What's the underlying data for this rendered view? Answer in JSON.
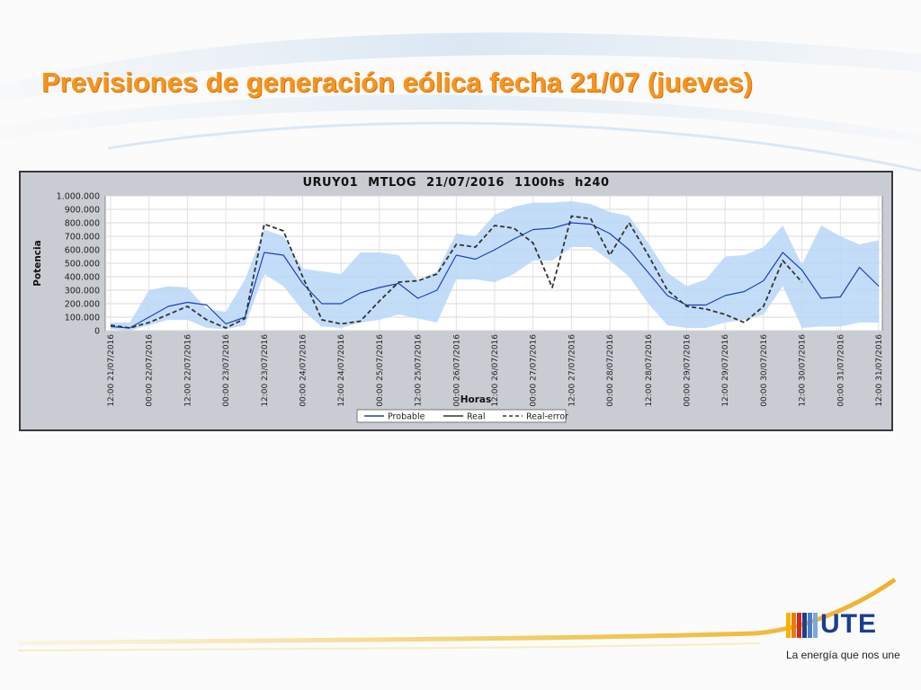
{
  "slide": {
    "title": "Previsiones de generación eólica fecha 21/07 (jueves)"
  },
  "brand": {
    "logo_text": "UTE",
    "tagline": "La energía que nos une"
  },
  "colors": {
    "title": "#f7941d",
    "band": "#b9d7f7",
    "probable": "#1f3fbf",
    "real": "#333333",
    "brand_blue": "#1b3f8f"
  },
  "chart_data": {
    "type": "line",
    "title": "URUY01  MTLOG  21/07/2016  1100hs   h240",
    "xlabel": "Horas",
    "ylabel": "Potencia",
    "ylim": [
      0,
      1000000
    ],
    "grid": true,
    "legend_position": "bottom",
    "yticks": [
      "0",
      "100.000",
      "200.000",
      "300.000",
      "400.000",
      "500.000",
      "600.000",
      "700.000",
      "800.000",
      "900.000",
      "1.000.000"
    ],
    "xticks": [
      "12:00 21/07/2016",
      "00:00 22/07/2016",
      "12:00 22/07/2016",
      "00:00 23/07/2016",
      "12:00 23/07/2016",
      "00:00 24/07/2016",
      "12:00 24/07/2016",
      "00:00 25/07/2016",
      "12:00 25/07/2016",
      "00:00 26/07/2016",
      "12:00 26/07/2016",
      "00:00 27/07/2016",
      "12:00 27/07/2016",
      "00:00 28/07/2016",
      "12:00 28/07/2016",
      "00:00 29/07/2016",
      "12:00 29/07/2016",
      "00:00 30/07/2016",
      "12:00 30/07/2016",
      "00:00 31/07/2016",
      "12:00 31/07/2016"
    ],
    "x_hours": [
      0,
      6,
      12,
      18,
      24,
      30,
      36,
      42,
      48,
      54,
      60,
      66,
      72,
      78,
      84,
      90,
      96,
      102,
      108,
      114,
      120,
      126,
      132,
      138,
      144,
      150,
      156,
      162,
      168,
      174,
      180,
      186,
      192,
      198,
      204,
      210,
      216,
      222,
      228,
      234,
      240
    ],
    "series": [
      {
        "name": "Probable",
        "style": "solid",
        "values": [
          30000,
          20000,
          100000,
          180000,
          210000,
          190000,
          50000,
          100000,
          580000,
          560000,
          350000,
          200000,
          200000,
          280000,
          320000,
          350000,
          240000,
          300000,
          560000,
          530000,
          600000,
          680000,
          750000,
          760000,
          800000,
          790000,
          720000,
          600000,
          430000,
          260000,
          190000,
          190000,
          260000,
          290000,
          370000,
          580000,
          450000,
          240000,
          250000,
          470000,
          330000
        ]
      },
      {
        "name": "Real",
        "style": "solid",
        "values": [
          40000,
          20000,
          60000,
          120000,
          180000,
          80000,
          20000,
          90000,
          790000,
          740000,
          400000,
          80000,
          50000,
          70000,
          220000,
          360000,
          370000,
          420000,
          640000,
          620000,
          780000,
          760000,
          650000,
          320000,
          850000,
          830000,
          560000,
          800000,
          560000,
          300000,
          180000,
          160000,
          120000,
          60000,
          180000,
          520000,
          360000,
          null,
          null,
          null,
          null
        ]
      },
      {
        "name": "Real-error",
        "style": "dashed",
        "values": [
          40000,
          20000,
          60000,
          120000,
          180000,
          80000,
          20000,
          90000,
          790000,
          740000,
          400000,
          80000,
          50000,
          70000,
          220000,
          360000,
          370000,
          420000,
          640000,
          620000,
          780000,
          760000,
          650000,
          320000,
          850000,
          830000,
          560000,
          800000,
          560000,
          300000,
          180000,
          160000,
          120000,
          60000,
          180000,
          520000,
          360000,
          null,
          null,
          null,
          null
        ]
      }
    ],
    "band": {
      "upper": [
        60000,
        60000,
        300000,
        330000,
        320000,
        160000,
        140000,
        380000,
        750000,
        700000,
        460000,
        440000,
        420000,
        580000,
        580000,
        560000,
        370000,
        440000,
        720000,
        700000,
        860000,
        920000,
        950000,
        950000,
        960000,
        940000,
        880000,
        850000,
        650000,
        430000,
        330000,
        380000,
        550000,
        560000,
        620000,
        780000,
        490000,
        780000,
        700000,
        640000,
        670000
      ],
      "lower": [
        10000,
        0,
        40000,
        80000,
        80000,
        20000,
        10000,
        40000,
        420000,
        330000,
        150000,
        30000,
        20000,
        60000,
        80000,
        120000,
        90000,
        60000,
        380000,
        380000,
        360000,
        420000,
        520000,
        520000,
        620000,
        620000,
        520000,
        400000,
        200000,
        40000,
        20000,
        20000,
        60000,
        80000,
        120000,
        330000,
        20000,
        30000,
        30000,
        60000,
        60000
      ]
    },
    "legend": [
      "Probable",
      "Real",
      "Real-error"
    ]
  }
}
